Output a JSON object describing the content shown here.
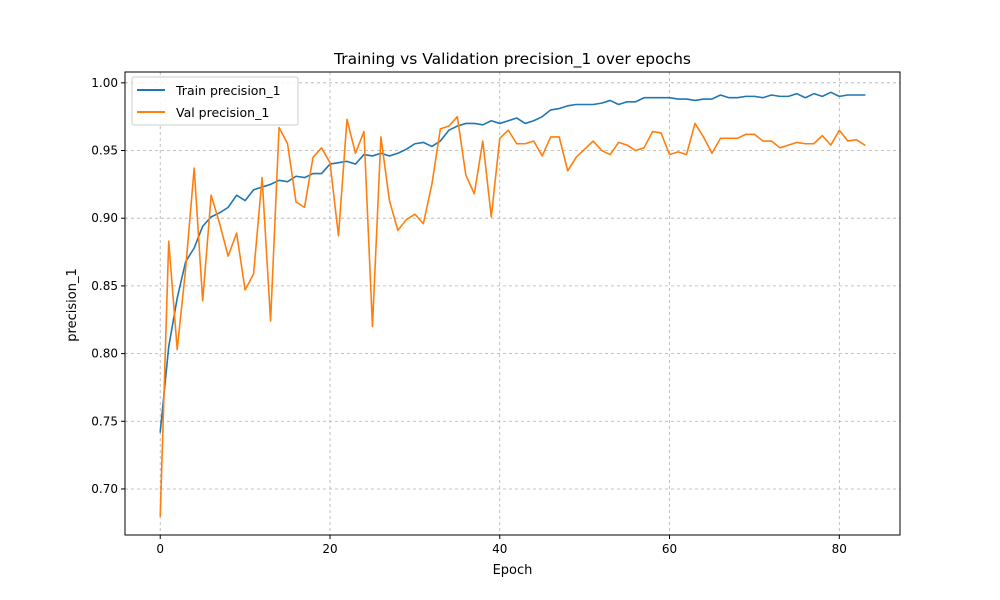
{
  "chart_data": {
    "type": "line",
    "title": "Training vs Validation precision_1 over epochs",
    "xlabel": "Epoch",
    "ylabel": "precision_1",
    "xlim": [
      -4.15,
      87.15
    ],
    "ylim": [
      0.666,
      1.008
    ],
    "xticks": [
      0,
      20,
      40,
      60,
      80
    ],
    "yticks": [
      0.7,
      0.75,
      0.8,
      0.85,
      0.9,
      0.95,
      1.0
    ],
    "ytick_labels": [
      "0.70",
      "0.75",
      "0.80",
      "0.85",
      "0.90",
      "0.95",
      "1.00"
    ],
    "grid": true,
    "legend_position": "upper-left",
    "series": [
      {
        "name": "Train precision_1",
        "color": "#1f77b4",
        "values": [
          0.742,
          0.805,
          0.841,
          0.868,
          0.878,
          0.894,
          0.901,
          0.904,
          0.908,
          0.917,
          0.913,
          0.921,
          0.923,
          0.925,
          0.928,
          0.927,
          0.931,
          0.93,
          0.933,
          0.933,
          0.94,
          0.941,
          0.942,
          0.94,
          0.947,
          0.946,
          0.948,
          0.946,
          0.948,
          0.951,
          0.955,
          0.956,
          0.953,
          0.957,
          0.965,
          0.968,
          0.97,
          0.97,
          0.969,
          0.972,
          0.97,
          0.972,
          0.974,
          0.97,
          0.972,
          0.975,
          0.98,
          0.981,
          0.983,
          0.984,
          0.984,
          0.984,
          0.985,
          0.987,
          0.984,
          0.986,
          0.986,
          0.989,
          0.989,
          0.989,
          0.989,
          0.988,
          0.988,
          0.987,
          0.988,
          0.988,
          0.991,
          0.989,
          0.989,
          0.99,
          0.99,
          0.989,
          0.991,
          0.99,
          0.99,
          0.992,
          0.989,
          0.992,
          0.99,
          0.993,
          0.99,
          0.991,
          0.991,
          0.991
        ]
      },
      {
        "name": "Val precision_1",
        "color": "#ff7f0e",
        "values": [
          0.68,
          0.883,
          0.803,
          0.863,
          0.937,
          0.839,
          0.917,
          0.896,
          0.872,
          0.889,
          0.847,
          0.859,
          0.93,
          0.824,
          0.967,
          0.955,
          0.912,
          0.908,
          0.945,
          0.952,
          0.941,
          0.887,
          0.973,
          0.948,
          0.964,
          0.82,
          0.96,
          0.913,
          0.891,
          0.899,
          0.903,
          0.896,
          0.925,
          0.966,
          0.968,
          0.975,
          0.932,
          0.918,
          0.957,
          0.901,
          0.959,
          0.965,
          0.955,
          0.955,
          0.957,
          0.946,
          0.96,
          0.96,
          0.935,
          0.945,
          0.951,
          0.957,
          0.95,
          0.947,
          0.956,
          0.954,
          0.95,
          0.952,
          0.964,
          0.963,
          0.947,
          0.949,
          0.947,
          0.97,
          0.96,
          0.948,
          0.959,
          0.959,
          0.959,
          0.962,
          0.962,
          0.957,
          0.957,
          0.952,
          0.954,
          0.956,
          0.955,
          0.955,
          0.961,
          0.954,
          0.965,
          0.957,
          0.958,
          0.954
        ]
      }
    ]
  }
}
